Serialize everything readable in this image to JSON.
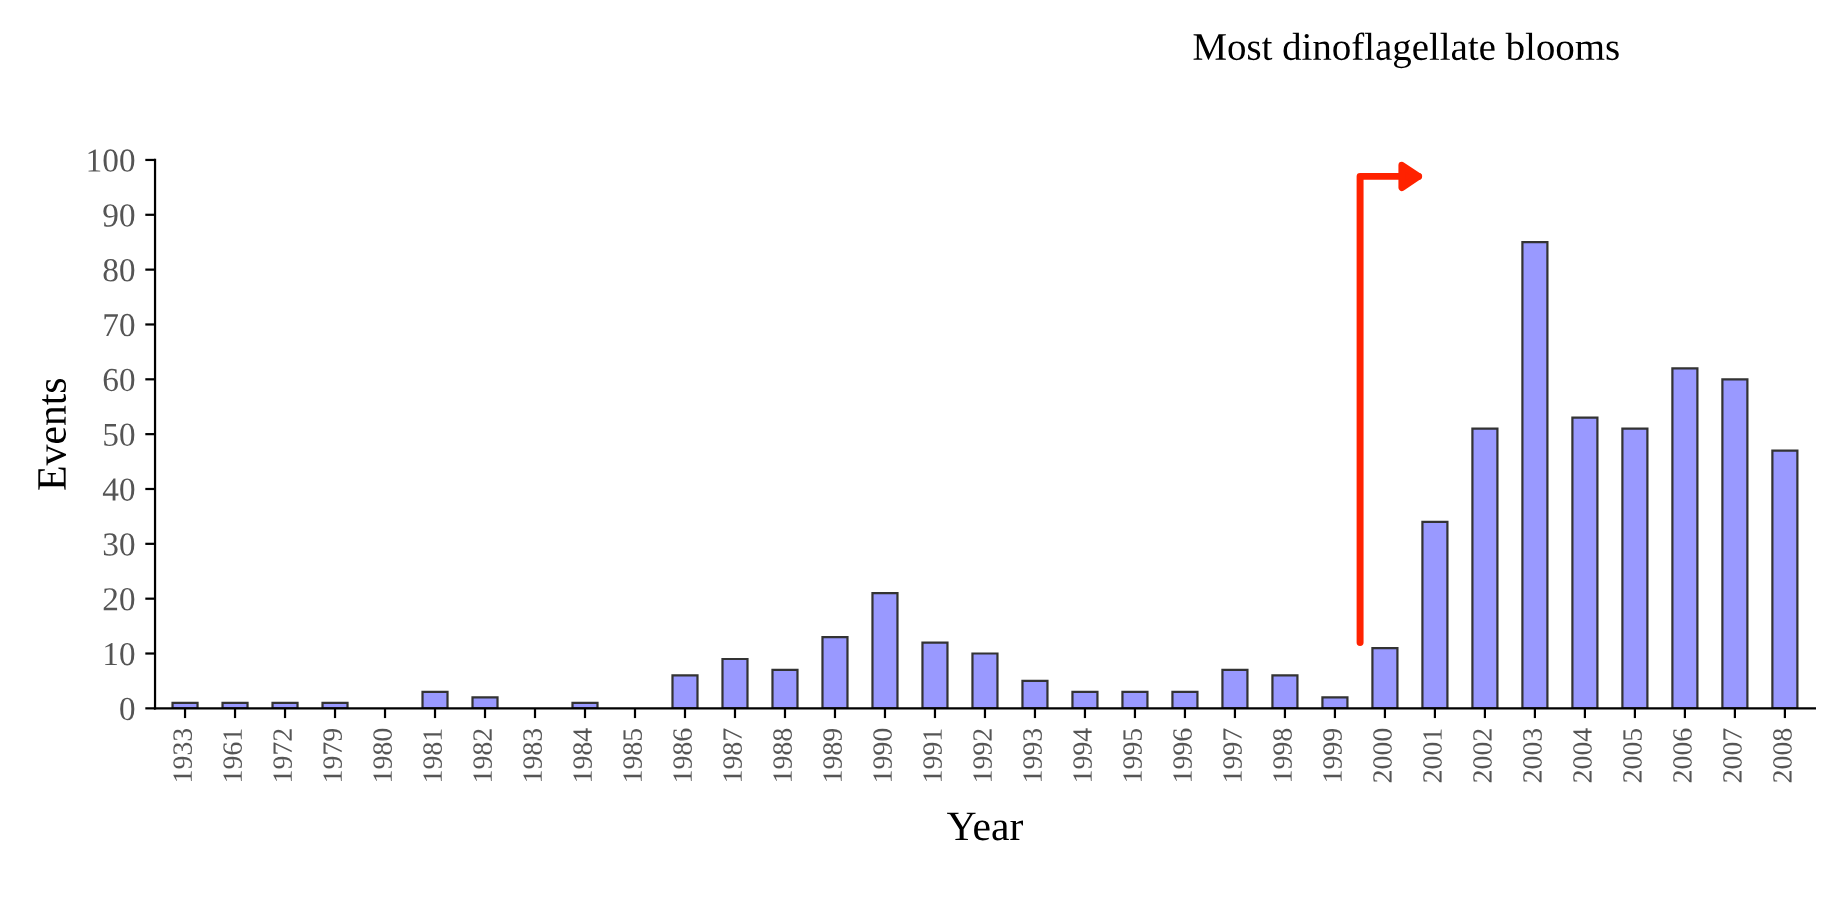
{
  "chart_data": {
    "type": "bar",
    "xlabel": "Year",
    "ylabel": "Events",
    "categories": [
      "1933",
      "1961",
      "1972",
      "1979",
      "1980",
      "1981",
      "1982",
      "1983",
      "1984",
      "1985",
      "1986",
      "1987",
      "1988",
      "1989",
      "1990",
      "1991",
      "1992",
      "1993",
      "1994",
      "1995",
      "1996",
      "1997",
      "1998",
      "1999",
      "2000",
      "2001",
      "2002",
      "2003",
      "2004",
      "2005",
      "2006",
      "2007",
      "2008"
    ],
    "values": [
      1,
      1,
      1,
      1,
      0,
      3,
      2,
      0,
      1,
      0,
      6,
      9,
      7,
      13,
      21,
      12,
      10,
      5,
      3,
      3,
      3,
      7,
      6,
      2,
      11,
      34,
      51,
      85,
      53,
      51,
      62,
      60,
      47
    ],
    "color": "#9999ff",
    "ylim": [
      0,
      100
    ],
    "yticks": [
      0,
      10,
      20,
      30,
      40,
      50,
      60,
      70,
      80,
      90,
      100
    ],
    "grid": false,
    "annotations": [
      "Most dinoflagellate blooms"
    ]
  }
}
